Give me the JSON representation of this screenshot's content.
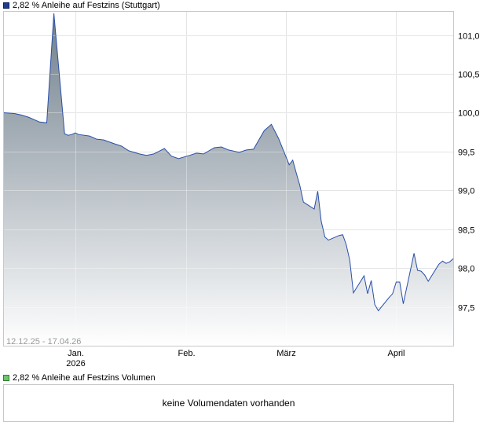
{
  "legend": {
    "price_label": "2,82 % Anleihe auf Festzins (Stuttgart)",
    "volume_label": "2,82 % Anleihe auf Festzins Volumen"
  },
  "volume": {
    "message": "keine Volumendaten vorhanden"
  },
  "chart_data": {
    "type": "area",
    "title": "",
    "range_label": "12.12.25 - 17.04.26",
    "x_ticks": [
      {
        "date": "2026-01-01",
        "label": "Jan.",
        "sublabel": "2026"
      },
      {
        "date": "2026-02-01",
        "label": "Feb.",
        "sublabel": ""
      },
      {
        "date": "2026-03-01",
        "label": "März",
        "sublabel": ""
      },
      {
        "date": "2026-04-01",
        "label": "April",
        "sublabel": ""
      }
    ],
    "y_ticks": [
      "101,0",
      "100,5",
      "100,0",
      "99,5",
      "99,0",
      "98,5",
      "98,0",
      "97,5"
    ],
    "y_tick_values": [
      101.0,
      100.5,
      100.0,
      99.5,
      99.0,
      98.5,
      98.0,
      97.5
    ],
    "xlim": [
      "2025-12-12",
      "2026-04-17"
    ],
    "ylim": [
      97.0,
      101.3
    ],
    "grid": true,
    "line_color": "#2a4fa8",
    "fill_top_color": "#707f8c",
    "fill_bottom_color": "#ffffff",
    "series": [
      {
        "x": [
          "2025-12-12",
          "2025-12-15",
          "2025-12-17",
          "2025-12-19",
          "2025-12-22",
          "2025-12-24",
          "2025-12-26",
          "2025-12-29",
          "2025-12-30",
          "2025-12-31",
          "2026-01-01",
          "2026-01-02",
          "2026-01-05",
          "2026-01-07",
          "2026-01-09",
          "2026-01-12",
          "2026-01-14",
          "2026-01-16",
          "2026-01-19",
          "2026-01-21",
          "2026-01-23",
          "2026-01-26",
          "2026-01-28",
          "2026-01-30",
          "2026-02-02",
          "2026-02-04",
          "2026-02-06",
          "2026-02-09",
          "2026-02-11",
          "2026-02-13",
          "2026-02-16",
          "2026-02-18",
          "2026-02-20",
          "2026-02-23",
          "2026-02-25",
          "2026-02-27",
          "2026-03-02",
          "2026-03-03",
          "2026-03-04",
          "2026-03-05",
          "2026-03-06",
          "2026-03-09",
          "2026-03-10",
          "2026-03-11",
          "2026-03-12",
          "2026-03-13",
          "2026-03-16",
          "2026-03-17",
          "2026-03-18",
          "2026-03-19",
          "2026-03-20",
          "2026-03-23",
          "2026-03-24",
          "2026-03-25",
          "2026-03-26",
          "2026-03-27",
          "2026-03-30",
          "2026-03-31",
          "2026-04-01",
          "2026-04-02",
          "2026-04-03",
          "2026-04-06",
          "2026-04-07",
          "2026-04-08",
          "2026-04-09",
          "2026-04-10",
          "2026-04-13",
          "2026-04-14",
          "2026-04-15",
          "2026-04-16",
          "2026-04-17"
        ],
        "y": [
          100.0,
          99.99,
          99.97,
          99.94,
          99.88,
          99.87,
          101.28,
          99.73,
          99.71,
          99.72,
          99.74,
          99.72,
          99.7,
          99.66,
          99.65,
          99.6,
          99.57,
          99.51,
          99.47,
          99.45,
          99.47,
          99.54,
          99.44,
          99.41,
          99.45,
          99.48,
          99.47,
          99.55,
          99.56,
          99.52,
          99.49,
          99.52,
          99.53,
          99.77,
          99.85,
          99.67,
          99.33,
          99.39,
          99.22,
          99.06,
          98.85,
          98.76,
          98.99,
          98.6,
          98.4,
          98.36,
          98.42,
          98.43,
          98.3,
          98.1,
          97.68,
          97.9,
          97.67,
          97.84,
          97.53,
          97.45,
          97.62,
          97.67,
          97.82,
          97.82,
          97.54,
          98.19,
          97.97,
          97.96,
          97.91,
          97.83,
          98.05,
          98.09,
          98.06,
          98.08,
          98.12
        ]
      }
    ]
  }
}
